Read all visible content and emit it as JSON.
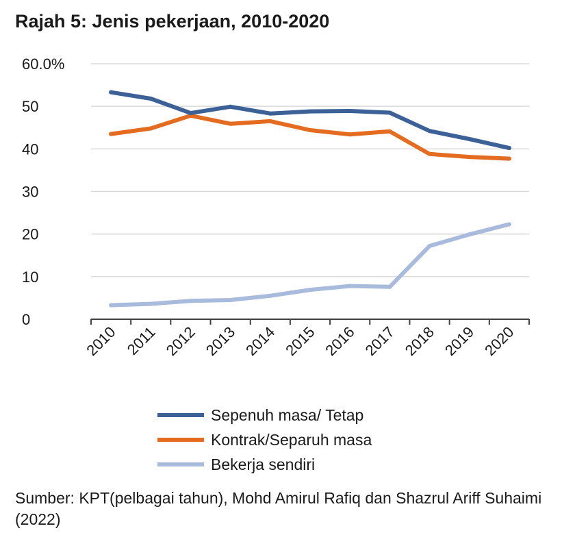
{
  "chart_data": {
    "type": "line",
    "title": "Rajah 5: Jenis pekerjaan, 2010-2020",
    "categories": [
      "2010",
      "2011",
      "2012",
      "2013",
      "2014",
      "2015",
      "2016",
      "2017",
      "2018",
      "2019",
      "2020"
    ],
    "y_tick_labels": [
      "60.0%",
      "50",
      "40",
      "30",
      "20",
      "10",
      "0"
    ],
    "ylim": [
      0,
      60
    ],
    "grid": true,
    "xlabel": "",
    "ylabel": "",
    "legend_position": "bottom",
    "series": [
      {
        "name": "Sepenuh masa/ Tetap",
        "color": "#3B6196",
        "values": [
          53.3,
          51.8,
          48.4,
          49.9,
          48.3,
          48.8,
          48.9,
          48.5,
          44.2,
          42.3,
          40.2
        ]
      },
      {
        "name": "Kontrak/Separuh masa",
        "color": "#E36C21",
        "values": [
          43.5,
          44.8,
          47.8,
          45.9,
          46.5,
          44.4,
          43.4,
          44.1,
          38.8,
          38.1,
          37.7
        ]
      },
      {
        "name": "Bekerja sendiri",
        "color": "#A9BBDC",
        "values": [
          3.3,
          3.6,
          4.3,
          4.5,
          5.5,
          6.9,
          7.8,
          7.6,
          17.2,
          19.9,
          22.3
        ]
      }
    ]
  },
  "source_note": "Sumber: KPT(pelbagai tahun), Mohd Amirul Rafiq dan Shazrul Ariff Suhaimi (2022)"
}
